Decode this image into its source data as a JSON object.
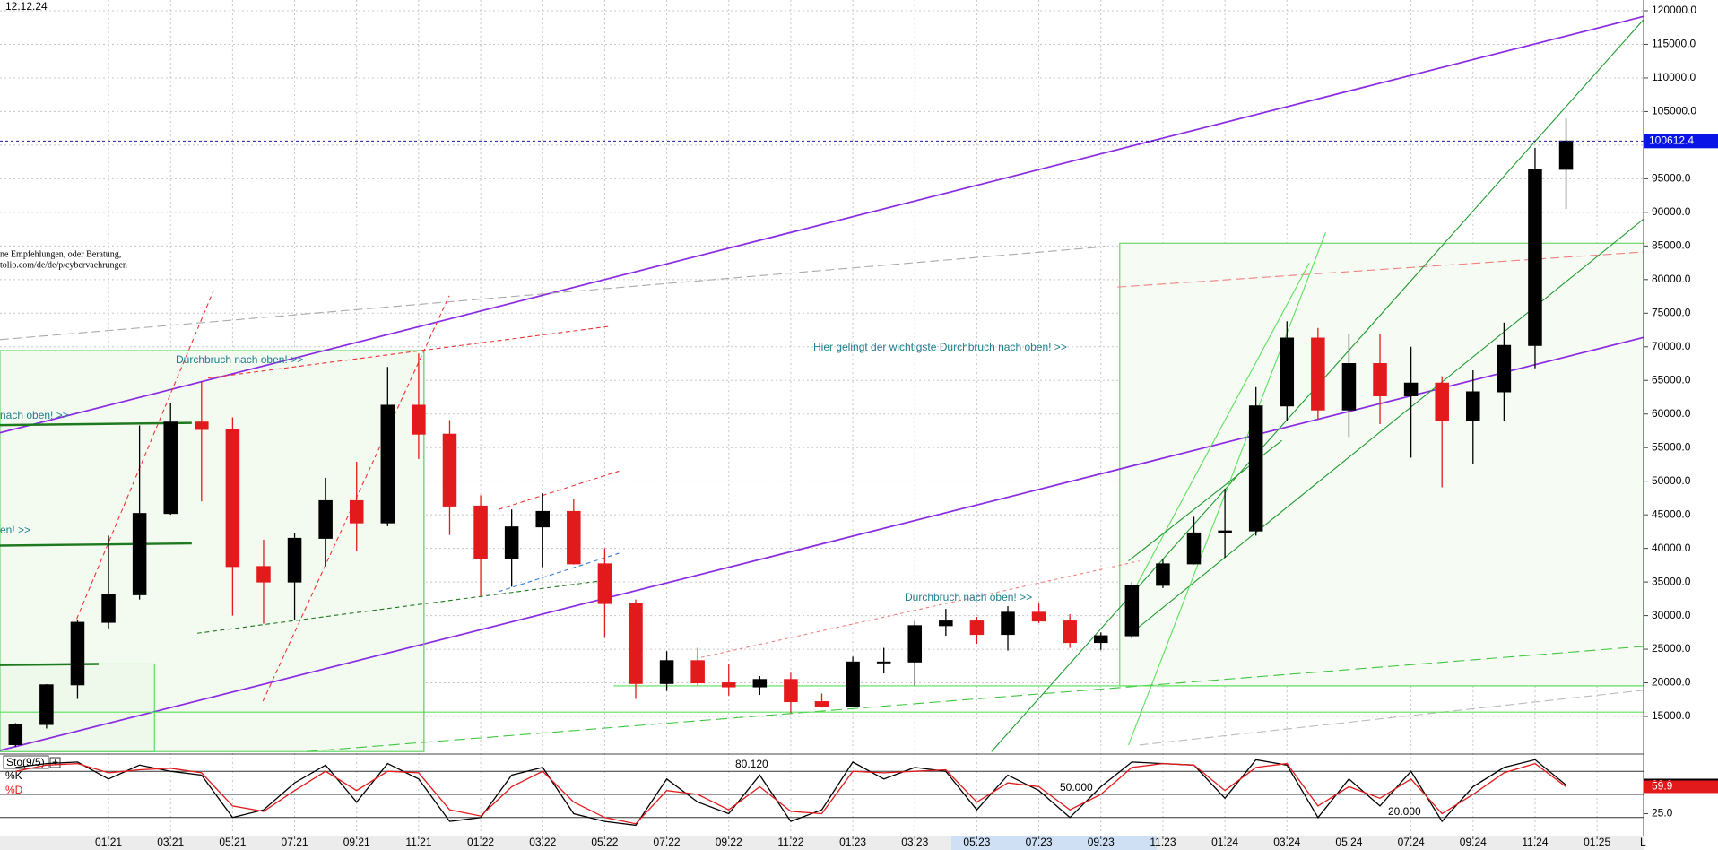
{
  "chart_data": [
    {
      "type": "candlestick",
      "date": "12.12.24",
      "annotations": [
        "Durchbruch nach oben! >>",
        "nach oben! >>",
        "en! >>",
        "Hier gelingt der wichtigste Durchbruch nach oben! >>",
        "Durchbruch nach oben! >>",
        "ne Empfehlungen, oder Beratung,",
        "tolio.com/de/de/p/cybervaehrungen"
      ],
      "corner_label": "L",
      "categories": [
        null,
        null,
        null,
        "01.21",
        null,
        "03.21",
        null,
        "05.21",
        null,
        "07.21",
        null,
        "09.21",
        null,
        "11.21",
        null,
        "01.22",
        null,
        "03.22",
        null,
        "05.22",
        null,
        "07.22",
        null,
        "09.22",
        null,
        "11.22",
        null,
        "01.23",
        null,
        "03.23",
        null,
        "05.23",
        null,
        "07.23",
        null,
        "09.23",
        null,
        "11.23",
        null,
        "01.24",
        null,
        "03.24",
        null,
        "05.24",
        null,
        "07.24",
        null,
        "09.24",
        null,
        "11.24",
        null,
        "01.25",
        null
      ],
      "open": [
        10800,
        13800,
        19700,
        29000,
        33100,
        45200,
        58800,
        57700,
        37300,
        35000,
        41500,
        47100,
        43800,
        61300,
        57000,
        46300,
        38500,
        43200,
        45500,
        37700,
        31800,
        19900,
        23300,
        20000,
        19400,
        20500,
        17200,
        16500,
        23100,
        23100,
        28500,
        29200,
        27200,
        30500,
        29200,
        26000,
        27000,
        34500,
        37700,
        42300,
        42600,
        61200,
        71300,
        60600,
        67500,
        62700,
        64600,
        59000,
        63300,
        70200,
        96400,
        null,
        null
      ],
      "high": [
        14000,
        19800,
        29300,
        41900,
        58300,
        61700,
        64800,
        59500,
        41300,
        42300,
        50500,
        52900,
        67000,
        69000,
        59100,
        47900,
        45800,
        48200,
        47400,
        40000,
        32400,
        24700,
        25200,
        22800,
        21000,
        21500,
        18400,
        23900,
        25200,
        29200,
        31000,
        29800,
        31400,
        31800,
        30200,
        27500,
        35000,
        38400,
        44700,
        48900,
        64000,
        73800,
        72800,
        71900,
        71900,
        70000,
        65600,
        66500,
        73600,
        99600,
        104000,
        null,
        null
      ],
      "low": [
        10500,
        13200,
        17600,
        28100,
        32400,
        45000,
        47000,
        30000,
        28800,
        29300,
        37300,
        39600,
        43300,
        53300,
        42000,
        32900,
        34300,
        37200,
        37600,
        26700,
        17600,
        18800,
        19600,
        18100,
        18200,
        15500,
        16300,
        16500,
        21400,
        19600,
        27000,
        25800,
        24800,
        28900,
        25200,
        24900,
        26600,
        34100,
        37600,
        38600,
        41900,
        59000,
        59200,
        56600,
        58500,
        53500,
        49100,
        52600,
        58900,
        66800,
        90500,
        null,
        null
      ],
      "close": [
        13800,
        19700,
        29000,
        33100,
        45200,
        58800,
        57700,
        37300,
        35000,
        41500,
        47100,
        43800,
        61300,
        57000,
        46300,
        38500,
        43200,
        45500,
        37700,
        31800,
        19900,
        23300,
        20000,
        19400,
        20500,
        17200,
        16500,
        23100,
        23100,
        28500,
        29200,
        27200,
        30500,
        29200,
        26000,
        27000,
        34500,
        37700,
        42300,
        42600,
        61200,
        71300,
        60600,
        67500,
        62700,
        64600,
        59000,
        63300,
        70200,
        96400,
        100612.4,
        null,
        null
      ],
      "up_color": "#000000",
      "down_color": "#e31a1c",
      "ylim": [
        9800,
        121600
      ],
      "yticks": [
        {
          "value": 15000,
          "label": "15000.0"
        },
        {
          "value": 20000,
          "label": "20000.0"
        },
        {
          "value": 25000,
          "label": "25000.0"
        },
        {
          "value": 30000,
          "label": "30000.0"
        },
        {
          "value": 35000,
          "label": "35000.0"
        },
        {
          "value": 40000,
          "label": "40000.0"
        },
        {
          "value": 45000,
          "label": "45000.0"
        },
        {
          "value": 50000,
          "label": "50000.0"
        },
        {
          "value": 55000,
          "label": "55000.0"
        },
        {
          "value": 60000,
          "label": "60000.0"
        },
        {
          "value": 65000,
          "label": "65000.0"
        },
        {
          "value": 70000,
          "label": "70000.0"
        },
        {
          "value": 75000,
          "label": "75000.0"
        },
        {
          "value": 80000,
          "label": "80000.0"
        },
        {
          "value": 85000,
          "label": "85000.0"
        },
        {
          "value": 90000,
          "label": "90000.0"
        },
        {
          "value": 95000,
          "label": "95000.0"
        },
        {
          "value": 100000,
          "label": "100000.0"
        },
        {
          "value": 105000,
          "label": "105000.0"
        },
        {
          "value": 110000,
          "label": "110000.0"
        },
        {
          "value": 115000,
          "label": "115000.0"
        },
        {
          "value": 120000,
          "label": "120000.0"
        }
      ],
      "grid": true
    },
    {
      "type": "line",
      "title": "Sto(9/5)",
      "series": [
        {
          "name": "%K",
          "color": "#000000",
          "values": [
            85,
            90,
            92,
            70,
            88,
            80,
            75,
            20,
            30,
            65,
            88,
            40,
            90,
            70,
            15,
            20,
            75,
            85,
            25,
            15,
            10,
            70,
            40,
            25,
            75,
            15,
            30,
            92,
            70,
            85,
            80,
            30,
            75,
            55,
            20,
            60,
            92,
            90,
            88,
            45,
            95,
            88,
            20,
            70,
            35,
            80,
            15,
            60,
            85,
            95,
            62.2,
            null,
            null
          ]
        },
        {
          "name": "%D",
          "color": "#e31a1c",
          "values": [
            80,
            88,
            90,
            78,
            82,
            84,
            78,
            35,
            28,
            55,
            80,
            55,
            80,
            78,
            30,
            22,
            60,
            80,
            40,
            20,
            12,
            55,
            50,
            30,
            60,
            28,
            25,
            80,
            78,
            80,
            82,
            40,
            65,
            60,
            30,
            50,
            85,
            90,
            88,
            55,
            85,
            90,
            35,
            60,
            45,
            70,
            25,
            50,
            78,
            90,
            59.9,
            null,
            null
          ]
        }
      ],
      "levels": [
        80,
        50,
        20
      ],
      "level_labels": [
        "80.120",
        "50.000",
        "20.000"
      ],
      "ylim": [
        0,
        100
      ],
      "yticks": [
        {
          "value": 25,
          "label": "25.0"
        }
      ]
    }
  ]
}
